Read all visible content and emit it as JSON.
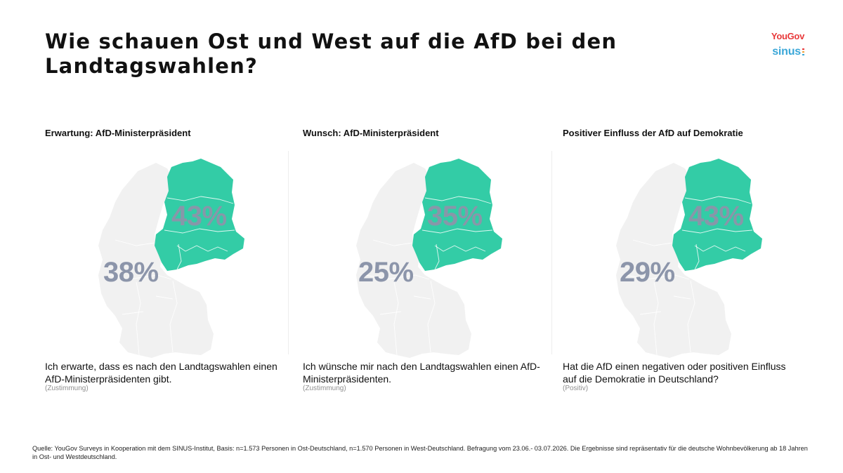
{
  "header": {
    "title_line1": "Wie schauen Ost und West auf die AfD bei den",
    "title_line2": "Landtagswahlen?",
    "logo_yougov": "YouGov",
    "logo_sinus": "sinus"
  },
  "colors": {
    "east": "#33cca6",
    "west": "#f1f1f1",
    "percent": "#8c95aa"
  },
  "chart_data": [
    {
      "type": "map",
      "title": "Erwartung: AfD-Ministerpräsident",
      "series": [
        {
          "name": "Ost",
          "value": 43,
          "label": "43%"
        },
        {
          "name": "West",
          "value": 38,
          "label": "38%"
        }
      ],
      "question": "Ich erwarte, dass es nach den Landtagswahlen einen AfD-Ministerpräsidenten gibt.",
      "note": "(Zustimmung)"
    },
    {
      "type": "map",
      "title": "Wunsch: AfD-Ministerpräsident",
      "series": [
        {
          "name": "Ost",
          "value": 35,
          "label": "35%"
        },
        {
          "name": "West",
          "value": 25,
          "label": "25%"
        }
      ],
      "question": "Ich wünsche mir nach den Landtagswahlen einen AfD-Ministerpräsidenten.",
      "note": "(Zustimmung)"
    },
    {
      "type": "map",
      "title": "Positiver Einfluss der AfD auf Demokratie",
      "series": [
        {
          "name": "Ost",
          "value": 43,
          "label": "43%"
        },
        {
          "name": "West",
          "value": 29,
          "label": "29%"
        }
      ],
      "question": "Hat die AfD einen negativen oder positiven Einfluss auf die Demokratie in Deutschland?",
      "note": "(Positiv)"
    }
  ],
  "footer": {
    "source": "Quelle: YouGov Surveys in Kooperation mit dem SINUS-Institut, Basis: n=1.573 Personen in Ost-Deutschland, n=1.570 Personen in West-Deutschland. Befragung vom 23.06.- 03.07.2026. Die Ergebnisse sind repräsentativ für die deutsche Wohnbevölkerung ab 18 Jahren in Ost- und Westdeutschland."
  }
}
